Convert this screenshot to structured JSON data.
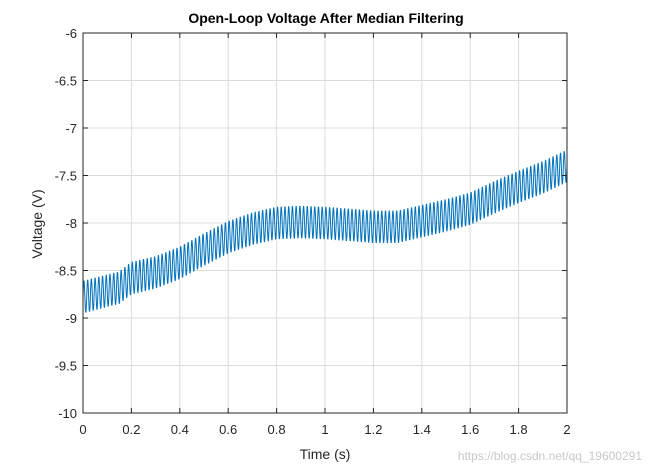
{
  "chart_data": {
    "type": "line",
    "title": "Open-Loop Voltage After Median Filtering",
    "xlabel": "Time (s)",
    "ylabel": "Voltage (V)",
    "xlim": [
      0,
      2
    ],
    "ylim": [
      -10,
      -6
    ],
    "xticks": [
      0,
      0.2,
      0.4,
      0.6,
      0.8,
      1,
      1.2,
      1.4,
      1.6,
      1.8,
      2
    ],
    "xtick_labels": [
      "0",
      "0.2",
      "0.4",
      "0.6",
      "0.8",
      "1",
      "1.2",
      "1.4",
      "1.6",
      "1.8",
      "2"
    ],
    "yticks": [
      -6,
      -6.5,
      -7,
      -7.5,
      -8,
      -8.5,
      -9,
      -9.5,
      -10
    ],
    "ytick_labels": [
      "-6",
      "-6.5",
      "-7",
      "-7.5",
      "-8",
      "-8.5",
      "-9",
      "-9.5",
      "-10"
    ],
    "grid": true,
    "series": [
      {
        "color": "#0072BD",
        "oscillation_amplitude": 0.17,
        "oscillation_cycles_per_second": 65,
        "trend": {
          "x": [
            0,
            0.15,
            0.2,
            0.3,
            0.4,
            0.5,
            0.6,
            0.7,
            0.8,
            0.9,
            1.0,
            1.1,
            1.2,
            1.3,
            1.4,
            1.5,
            1.6,
            1.7,
            1.8,
            1.9,
            2.0
          ],
          "y": [
            -8.78,
            -8.68,
            -8.58,
            -8.52,
            -8.42,
            -8.28,
            -8.15,
            -8.06,
            -8.0,
            -7.99,
            -8.0,
            -8.02,
            -8.04,
            -8.04,
            -7.98,
            -7.92,
            -7.85,
            -7.73,
            -7.62,
            -7.52,
            -7.4
          ]
        }
      }
    ]
  },
  "watermark": "https://blog.csdn.net/qq_19600291"
}
